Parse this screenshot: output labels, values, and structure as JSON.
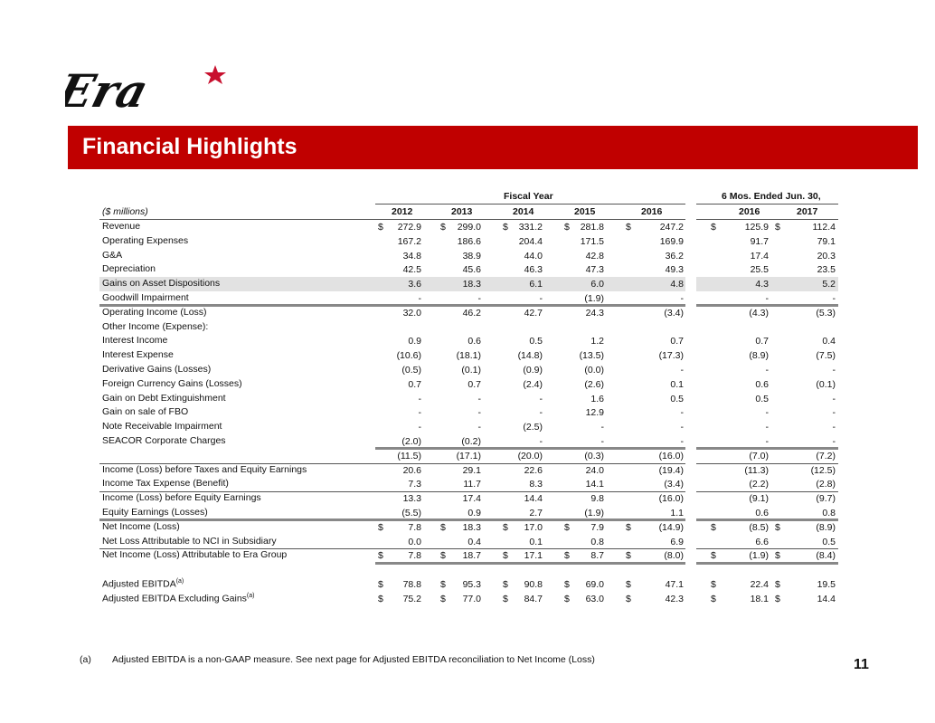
{
  "logo": {
    "text": "Era",
    "colors": {
      "text": "#111111",
      "star": "#c8102e"
    }
  },
  "banner": {
    "title": "Financial Highlights",
    "color": "#c00000"
  },
  "table": {
    "units_label": "($ millions)",
    "group_fiscal": "Fiscal Year",
    "group_six_months": "6 Mos. Ended Jun. 30,",
    "columns": [
      "2012",
      "2013",
      "2014",
      "2015",
      "2016",
      "2016",
      "2017"
    ],
    "currency": "$",
    "rows": [
      {
        "label": "Revenue",
        "dollar": true,
        "values": [
          "272.9",
          "299.0",
          "331.2",
          "281.8",
          "247.2",
          "125.9",
          "112.4"
        ]
      },
      {
        "label": "Operating Expenses",
        "values": [
          "167.2",
          "186.6",
          "204.4",
          "171.5",
          "169.9",
          "91.7",
          "79.1"
        ]
      },
      {
        "label": "G&A",
        "values": [
          "34.8",
          "38.9",
          "44.0",
          "42.8",
          "36.2",
          "17.4",
          "20.3"
        ]
      },
      {
        "label": "Depreciation",
        "values": [
          "42.5",
          "45.6",
          "46.3",
          "47.3",
          "49.3",
          "25.5",
          "23.5"
        ]
      },
      {
        "label": "Gains on Asset Dispositions",
        "shaded": true,
        "values": [
          "3.6",
          "18.3",
          "6.1",
          "6.0",
          "4.8",
          "4.3",
          "5.2"
        ]
      },
      {
        "label": "Goodwill Impairment",
        "values": [
          "-",
          "-",
          "-",
          "(1.9)",
          "-",
          "-",
          "-"
        ]
      },
      {
        "label": "Operating Income (Loss)",
        "values": [
          "32.0",
          "46.2",
          "42.7",
          "24.3",
          "(3.4)",
          "(4.3)",
          "(5.3)"
        ]
      },
      {
        "label": "Other Income (Expense):",
        "values": [
          "",
          "",
          "",
          "",
          "",
          "",
          ""
        ]
      },
      {
        "label": "Interest Income",
        "values": [
          "0.9",
          "0.6",
          "0.5",
          "1.2",
          "0.7",
          "0.7",
          "0.4"
        ]
      },
      {
        "label": "Interest Expense",
        "values": [
          "(10.6)",
          "(18.1)",
          "(14.8)",
          "(13.5)",
          "(17.3)",
          "(8.9)",
          "(7.5)"
        ]
      },
      {
        "label": "Derivative Gains (Losses)",
        "values": [
          "(0.5)",
          "(0.1)",
          "(0.9)",
          "(0.0)",
          "-",
          "-",
          "-"
        ]
      },
      {
        "label": "Foreign Currency Gains (Losses)",
        "values": [
          "0.7",
          "0.7",
          "(2.4)",
          "(2.6)",
          "0.1",
          "0.6",
          "(0.1)"
        ]
      },
      {
        "label": "Gain on Debt Extinguishment",
        "values": [
          "-",
          "-",
          "-",
          "1.6",
          "0.5",
          "0.5",
          "-"
        ]
      },
      {
        "label": "Gain on sale of FBO",
        "values": [
          "-",
          "-",
          "-",
          "12.9",
          "-",
          "-",
          "-"
        ]
      },
      {
        "label": "Note Receivable Impairment",
        "values": [
          "-",
          "-",
          "(2.5)",
          "-",
          "-",
          "-",
          "-"
        ]
      },
      {
        "label": "SEACOR Corporate Charges",
        "values": [
          "(2.0)",
          "(0.2)",
          "-",
          "-",
          "-",
          "-",
          "-"
        ]
      },
      {
        "label": "",
        "values": [
          "(11.5)",
          "(17.1)",
          "(20.0)",
          "(0.3)",
          "(16.0)",
          "(7.0)",
          "(7.2)"
        ]
      },
      {
        "label": "Income (Loss) before Taxes and Equity Earnings",
        "values": [
          "20.6",
          "29.1",
          "22.6",
          "24.0",
          "(19.4)",
          "(11.3)",
          "(12.5)"
        ]
      },
      {
        "label": "Income Tax Expense (Benefit)",
        "values": [
          "7.3",
          "11.7",
          "8.3",
          "14.1",
          "(3.4)",
          "(2.2)",
          "(2.8)"
        ]
      },
      {
        "label": "Income (Loss) before Equity Earnings",
        "values": [
          "13.3",
          "17.4",
          "14.4",
          "9.8",
          "(16.0)",
          "(9.1)",
          "(9.7)"
        ]
      },
      {
        "label": "Equity Earnings (Losses)",
        "values": [
          "(5.5)",
          "0.9",
          "2.7",
          "(1.9)",
          "1.1",
          "0.6",
          "0.8"
        ]
      },
      {
        "label": "Net Income (Loss)",
        "dollar": true,
        "values": [
          "7.8",
          "18.3",
          "17.0",
          "7.9",
          "(14.9)",
          "(8.5)",
          "(8.9)"
        ]
      },
      {
        "label": "Net Loss Attributable to NCI in Subsidiary",
        "values": [
          "0.0",
          "0.4",
          "0.1",
          "0.8",
          "6.9",
          "6.6",
          "0.5"
        ]
      },
      {
        "label": "Net Income (Loss) Attributable to Era Group",
        "dollar": true,
        "values": [
          "7.8",
          "18.7",
          "17.1",
          "8.7",
          "(8.0)",
          "(1.9)",
          "(8.4)"
        ]
      },
      {
        "label": "",
        "values": [
          "",
          "",
          "",
          "",
          "",
          "",
          ""
        ]
      },
      {
        "label": "Adjusted EBITDA",
        "sup": "(a)",
        "dollar": true,
        "values": [
          "78.8",
          "95.3",
          "90.8",
          "69.0",
          "47.1",
          "22.4",
          "19.5"
        ]
      },
      {
        "label": "Adjusted EBITDA Excluding Gains",
        "sup": "(a)",
        "dollar": true,
        "values": [
          "75.2",
          "77.0",
          "84.7",
          "63.0",
          "42.3",
          "18.1",
          "14.4"
        ]
      }
    ]
  },
  "footnote": {
    "marker": "(a)",
    "text": "Adjusted EBITDA is a non-GAAP measure. See next page for Adjusted EBITDA reconciliation to Net Income (Loss)"
  },
  "page_number": "11"
}
